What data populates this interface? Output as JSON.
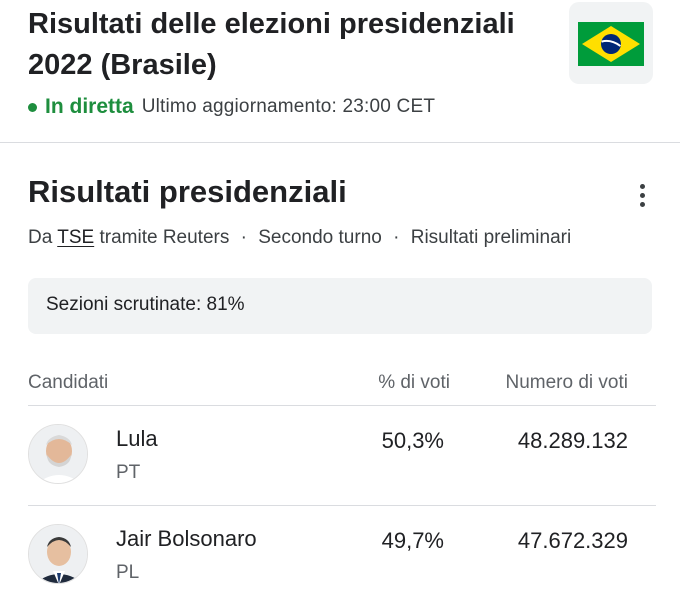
{
  "header": {
    "title": "Risultati delle elezioni presidenziali 2022 (Brasile)",
    "flag_icon": "brazil-flag-icon",
    "live_label": "In diretta",
    "last_update": "Ultimo aggiornamento: 23:00 CET",
    "colors": {
      "live": "#1e8e3e",
      "flag_green": "#009c3b",
      "flag_yellow": "#ffdf00",
      "flag_blue": "#002776"
    }
  },
  "results": {
    "title": "Risultati presidenziali",
    "more_icon": "more-vert-icon",
    "source": {
      "prefix": "Da",
      "link": "TSE",
      "via": "tramite Reuters",
      "round": "Secondo turno",
      "status": "Risultati preliminari"
    },
    "sections_counted": "Sezioni scrutinate: 81%",
    "columns": {
      "candidates": "Candidati",
      "percent": "% di voti",
      "votes": "Numero di voti"
    },
    "candidates": [
      {
        "name": "Lula",
        "party": "PT",
        "percent": "50,3%",
        "votes": "48.289.132",
        "avatar_icon": "lula-avatar"
      },
      {
        "name": "Jair Bolsonaro",
        "party": "PL",
        "percent": "49,7%",
        "votes": "47.672.329",
        "avatar_icon": "bolsonaro-avatar"
      }
    ]
  }
}
